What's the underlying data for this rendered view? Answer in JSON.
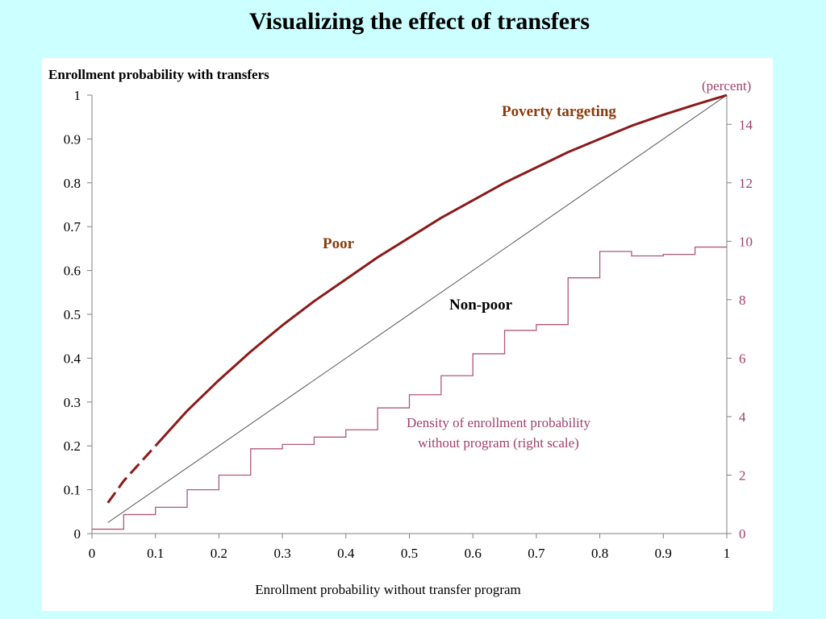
{
  "slide": {
    "title": "Visualizing the effect of transfers"
  },
  "colors": {
    "background": "#ccffff",
    "panel": "#ffffff",
    "poverty_curve": "#8b1a1a",
    "diagonal": "#555555",
    "density": "#b05878",
    "label_brown": "#8b3a0a",
    "right_axis": "#a0406a"
  },
  "chart_data": {
    "type": "line",
    "title": "",
    "ylabel": "Enrollment probability with transfers",
    "xlabel": "Enrollment probability without transfer program",
    "right_ylabel": "(percent)",
    "xlim": [
      0,
      1
    ],
    "ylim": [
      0,
      1
    ],
    "right_ylim": [
      0,
      15
    ],
    "x_ticks": [
      "0",
      "0.1",
      "0.2",
      "0.3",
      "0.4",
      "0.5",
      "0.6",
      "0.7",
      "0.8",
      "0.9",
      "1"
    ],
    "y_ticks": [
      "0",
      "0.1",
      "0.2",
      "0.3",
      "0.4",
      "0.5",
      "0.6",
      "0.7",
      "0.8",
      "0.9",
      "1"
    ],
    "right_ticks": [
      "0",
      "2",
      "4",
      "6",
      "8",
      "10",
      "12",
      "14"
    ],
    "annotations": {
      "poverty_targeting": "Poverty targeting",
      "poor": "Poor",
      "non_poor": "Non-poor",
      "density_line1": "Density of enrollment probability",
      "density_line2": "without program (right scale)"
    },
    "series": [
      {
        "x": [
          0.025,
          0.05,
          0.1,
          0.15,
          0.2,
          0.25,
          0.3,
          0.35,
          0.4,
          0.45,
          0.5,
          0.55,
          0.6,
          0.65,
          0.7,
          0.75,
          0.8,
          0.85,
          0.9,
          0.95,
          1.0
        ],
        "y": [
          0.07,
          0.12,
          0.2,
          0.28,
          0.35,
          0.415,
          0.475,
          0.53,
          0.58,
          0.63,
          0.675,
          0.72,
          0.76,
          0.8,
          0.835,
          0.87,
          0.9,
          0.93,
          0.955,
          0.978,
          1.0
        ]
      },
      {
        "x": [
          0.025,
          1.0
        ],
        "y": [
          0.025,
          1.0
        ]
      },
      {
        "type": "step",
        "axis": "right",
        "bins_start": [
          0.0,
          0.05,
          0.1,
          0.15,
          0.2,
          0.25,
          0.3,
          0.35,
          0.4,
          0.45,
          0.5,
          0.55,
          0.6,
          0.65,
          0.7,
          0.75,
          0.8,
          0.85,
          0.9,
          0.95
        ],
        "bin_width": 0.05,
        "values": [
          0.15,
          0.65,
          0.9,
          1.5,
          2.0,
          2.9,
          3.05,
          3.3,
          3.55,
          4.3,
          4.75,
          5.4,
          6.15,
          6.95,
          7.15,
          8.75,
          9.65,
          9.5,
          9.55,
          9.8
        ]
      }
    ]
  }
}
